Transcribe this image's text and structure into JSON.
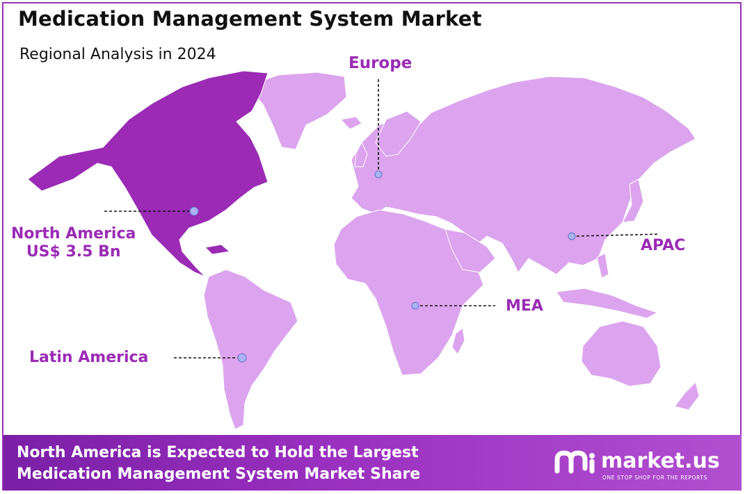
{
  "header": {
    "title": "Medication Management System Market",
    "subtitle": "Regional Analysis in 2024"
  },
  "regions": [
    {
      "id": "north-america",
      "name": "North America",
      "value": "US$ 3.5 Bn",
      "highlighted": true
    },
    {
      "id": "europe",
      "name": "Europe",
      "highlighted": false
    },
    {
      "id": "apac",
      "name": "APAC",
      "highlighted": false
    },
    {
      "id": "mea",
      "name": "MEA",
      "highlighted": false
    },
    {
      "id": "latin-america",
      "name": "Latin America",
      "highlighted": false
    }
  ],
  "colors": {
    "highlight_region": "#9b2bb5",
    "other_regions": "#dca4ee",
    "label": "#9b2bb5",
    "marker": "#a9b3f0",
    "border": "#9a2fb7",
    "banner_start": "#7a1fa6",
    "banner_end": "#b04fd0"
  },
  "footer": {
    "line1": "North America is Expected to Hold the Largest",
    "line2": "Medication Management System Market Share",
    "brand": "market.us",
    "tagline": "ONE STOP SHOP FOR THE REPORTS"
  }
}
